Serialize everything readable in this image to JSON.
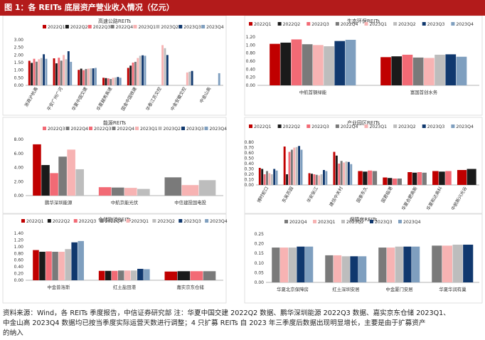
{
  "page": {
    "title": "图 1：各 REITs 底层资产营业收入情况（亿元）",
    "footer_lines": [
      "资料来源：Wind，各 REITs 季度报告，中信证券研究部  注：华夏中国交建 2022Q2 数据、鹏华深圳能源 2022Q3 数据、嘉实京东仓储 2023Q1、",
      "中金山高 2023Q4 数据均已按当季度实际运营天数进行调整；4 只扩募 REITs 自 2023 年三季度后数据出现明显增长，主要是由于扩募资产",
      "的纳入"
    ]
  },
  "colors": {
    "2022Q1": "#c00000",
    "2022Q2": "#1a1a1a",
    "2022Q3": "#f26a75",
    "2022Q4": "#7a7a7a",
    "2023Q1": "#f7b3b3",
    "2023Q2": "#bdbdbd",
    "2023Q3": "#10386e",
    "2023Q4": "#7f9fbf"
  },
  "chart_data": [
    {
      "type": "bar",
      "title": "高速公路REITs",
      "series_names": [
        "2022Q1",
        "2022Q2",
        "2022Q3",
        "2022Q4",
        "2023Q1",
        "2023Q2",
        "2023Q3",
        "2023Q4"
      ],
      "categories": [
        "浙商沪杭甬",
        "平安广州广河",
        "华夏中国交建",
        "华夏越秀高速",
        "国金中国铁建",
        "华泰江苏交控",
        "中金安徽交控",
        "中金山高"
      ],
      "values": [
        [
          1.62,
          1.48,
          1.75,
          1.56,
          1.72,
          1.8,
          2.05,
          1.75
        ],
        [
          1.78,
          1.45,
          1.82,
          1.63,
          2.0,
          1.72,
          2.25,
          1.55
        ],
        [
          1.02,
          1.1,
          1.0,
          1.08,
          1.1,
          1.12,
          1.12,
          1.15
        ],
        [
          0.5,
          0.48,
          0.46,
          0.42,
          0.5,
          0.52,
          0.55,
          0.5
        ],
        [
          1.15,
          1.3,
          1.5,
          1.55,
          1.8,
          1.95,
          1.98,
          1.95
        ],
        [
          null,
          null,
          null,
          null,
          2.65,
          2.45,
          2.0,
          null
        ],
        [
          null,
          null,
          null,
          null,
          0.85,
          0.9,
          0.95,
          null
        ],
        [
          null,
          null,
          null,
          null,
          null,
          null,
          null,
          0.8
        ]
      ],
      "ylim": [
        0,
        3.0
      ],
      "yticks": [
        "0.00",
        "0.50",
        "1.00",
        "1.50",
        "2.00",
        "2.50",
        "3.00"
      ]
    },
    {
      "type": "bar",
      "title": "生态环保REITs",
      "series_names": [
        "2022Q1",
        "2022Q2",
        "2022Q3",
        "2022Q4",
        "2023Q1",
        "2023Q2",
        "2023Q3",
        "2023Q4"
      ],
      "categories": [
        "中航首钢绿能",
        "富国首创水务"
      ],
      "values": [
        [
          1.03,
          1.06,
          1.14,
          1.02,
          1.0,
          0.97,
          1.1,
          1.13
        ],
        [
          0.7,
          0.72,
          0.76,
          0.69,
          0.68,
          0.76,
          0.77,
          0.71
        ]
      ],
      "ylim": [
        0,
        1.2
      ],
      "yticks": [
        "0.00",
        "0.20",
        "0.40",
        "0.60",
        "0.80",
        "1.00",
        "1.20"
      ]
    },
    {
      "type": "bar",
      "title": "能源REITs",
      "series_names": [
        "2022Q3",
        "2022Q4",
        "2022Q3",
        "2022Q4",
        "2023Q1",
        "2023Q2",
        "2023Q3",
        "2023Q4"
      ],
      "categories": [
        "鹏华深圳能源",
        "中航京能光伏",
        "中信建投国电投"
      ],
      "values": [
        [
          7.3,
          4.35,
          3.2,
          5.55,
          6.55,
          3.75
        ],
        [
          1.2,
          1.15,
          1.1,
          0.95
        ],
        [
          2.6,
          1.5,
          2.2
        ]
      ],
      "ylim": [
        0,
        8.0
      ],
      "yticks": [
        "0.00",
        "2.00",
        "4.00",
        "6.00",
        "8.00"
      ]
    },
    {
      "type": "bar",
      "title": "产业园区REITs",
      "series_names": [
        "2022Q1",
        "2022Q2",
        "2022Q3",
        "2022Q4",
        "2023Q1",
        "2023Q2",
        "2023Q3",
        "2023Q4"
      ],
      "categories": [
        "博时蛇口",
        "东吴苏园",
        "华安张江",
        "建信中关村",
        "国泰东久",
        "国君临港",
        "华夏合肥高新",
        "华夏和达高科",
        "中航新兴光谷"
      ],
      "values": [
        [
          0.32,
          0.3,
          0.2,
          0.26,
          0.22,
          0.2,
          0.3,
          0.27
        ],
        [
          0.72,
          0.2,
          0.62,
          0.66,
          0.7,
          0.71,
          0.73,
          0.66
        ],
        [
          0.22,
          0.21,
          0.2,
          0.19,
          0.18,
          0.2,
          0.28,
          0.26
        ],
        [
          0.62,
          0.55,
          0.4,
          0.45,
          0.42,
          0.44,
          0.43,
          0.39
        ],
        [
          0.26,
          0.25,
          0.27,
          0.26
        ],
        [
          0.14,
          0.13,
          0.12,
          0.12
        ],
        [
          0.24,
          0.23,
          0.24,
          0.23
        ],
        [
          0.26,
          0.25,
          0.26
        ],
        [
          0.28,
          0.3
        ]
      ],
      "ylim": [
        0,
        0.8
      ],
      "yticks": [
        "0.00",
        "0.10",
        "0.20",
        "0.30",
        "0.40",
        "0.50",
        "0.60",
        "0.70",
        "0.80"
      ]
    },
    {
      "type": "bar",
      "title": "仓储物流REITs",
      "series_names": [
        "2022Q1",
        "2022Q2",
        "2022Q3",
        "2022Q4",
        "2023Q1",
        "2023Q2",
        "2023Q3",
        "2023Q4"
      ],
      "categories": [
        "中金普洛斯",
        "红土盐田港",
        "嘉实京东仓储"
      ],
      "values": [
        [
          0.9,
          0.85,
          0.86,
          0.85,
          0.85,
          0.93,
          1.13,
          1.17
        ],
        [
          0.28,
          0.28,
          0.28,
          0.29,
          0.29,
          0.29,
          0.34,
          0.33
        ],
        [
          0.26,
          0.27,
          0.27,
          0.27
        ]
      ],
      "ylim": [
        0,
        1.4
      ],
      "yticks": [
        "0.00",
        "0.20",
        "0.40",
        "0.60",
        "0.80",
        "1.00",
        "1.20",
        "1.40"
      ]
    },
    {
      "type": "bar",
      "title": "保障房REITs",
      "series_names": [
        "2022Q4",
        "2023Q1",
        "2023Q2",
        "2023Q3",
        "2023Q4"
      ],
      "categories": [
        "华夏北京保障房",
        "红土深圳安居",
        "中金厦门安居",
        "华夏华润有巢"
      ],
      "values": [
        [
          0.18,
          0.18,
          0.18,
          0.185,
          0.185
        ],
        [
          0.14,
          0.14,
          0.135,
          0.135,
          0.135
        ],
        [
          0.18,
          0.18,
          0.185,
          0.185,
          0.185
        ],
        [
          0.19,
          0.19,
          0.195,
          0.195
        ]
      ],
      "ylim": [
        0,
        0.25
      ],
      "yticks": [
        "0.00",
        "0.05",
        "0.10",
        "0.15",
        "0.20",
        "0.25"
      ]
    }
  ]
}
